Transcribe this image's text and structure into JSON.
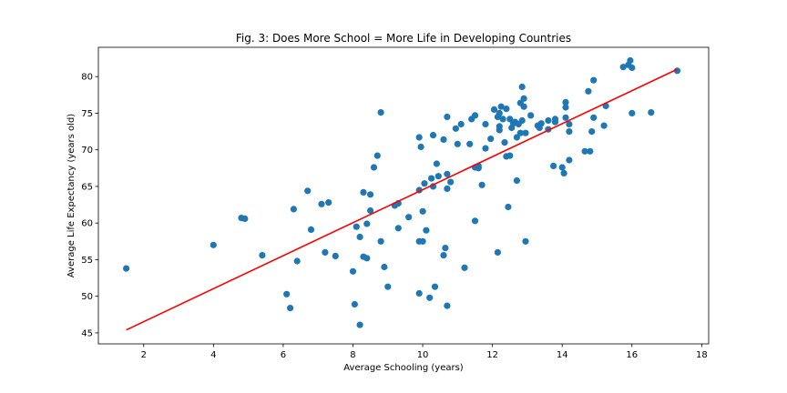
{
  "chart_data": {
    "type": "scatter",
    "title": "Fig. 3: Does More School = More Life in Developing Countries",
    "xlabel": "Average Schooling (years)",
    "ylabel": "Average Life Expectancy (years old)",
    "xlim": [
      0.7,
      18.2
    ],
    "ylim": [
      43.5,
      84.0
    ],
    "xticks": [
      2,
      4,
      6,
      8,
      10,
      12,
      14,
      16,
      18
    ],
    "yticks": [
      45,
      50,
      55,
      60,
      65,
      70,
      75,
      80
    ],
    "grid": false,
    "colors": {
      "points": "#1f77b4",
      "fit": "#ff0000"
    },
    "fit_line": {
      "x": [
        1.5,
        17.3
      ],
      "y": [
        45.4,
        81.0
      ]
    },
    "points": [
      [
        1.5,
        53.8
      ],
      [
        4.0,
        57.0
      ],
      [
        4.8,
        60.7
      ],
      [
        4.9,
        60.6
      ],
      [
        5.4,
        55.6
      ],
      [
        6.1,
        50.3
      ],
      [
        6.2,
        48.4
      ],
      [
        6.3,
        61.9
      ],
      [
        6.4,
        54.8
      ],
      [
        6.7,
        64.4
      ],
      [
        6.8,
        59.1
      ],
      [
        7.1,
        62.6
      ],
      [
        7.2,
        56.0
      ],
      [
        7.3,
        62.8
      ],
      [
        7.5,
        55.5
      ],
      [
        8.0,
        53.4
      ],
      [
        8.05,
        48.9
      ],
      [
        8.1,
        59.5
      ],
      [
        8.2,
        58.1
      ],
      [
        8.2,
        46.1
      ],
      [
        8.3,
        64.2
      ],
      [
        8.3,
        55.4
      ],
      [
        8.4,
        55.2
      ],
      [
        8.4,
        59.9
      ],
      [
        8.5,
        63.9
      ],
      [
        8.5,
        61.7
      ],
      [
        8.6,
        67.6
      ],
      [
        8.7,
        69.2
      ],
      [
        8.8,
        57.5
      ],
      [
        8.8,
        75.1
      ],
      [
        8.9,
        54.0
      ],
      [
        9.0,
        51.3
      ],
      [
        9.2,
        62.4
      ],
      [
        9.3,
        62.7
      ],
      [
        9.3,
        59.3
      ],
      [
        9.6,
        60.8
      ],
      [
        9.9,
        64.5
      ],
      [
        9.9,
        57.5
      ],
      [
        9.9,
        50.4
      ],
      [
        9.9,
        71.7
      ],
      [
        9.95,
        70.4
      ],
      [
        10.0,
        61.6
      ],
      [
        10.0,
        57.5
      ],
      [
        10.05,
        65.4
      ],
      [
        10.1,
        59.0
      ],
      [
        10.2,
        49.8
      ],
      [
        10.25,
        66.1
      ],
      [
        10.3,
        72.0
      ],
      [
        10.3,
        65.0
      ],
      [
        10.35,
        51.3
      ],
      [
        10.4,
        68.1
      ],
      [
        10.45,
        66.4
      ],
      [
        10.6,
        55.6
      ],
      [
        10.6,
        71.4
      ],
      [
        10.65,
        56.6
      ],
      [
        10.7,
        48.7
      ],
      [
        10.7,
        74.5
      ],
      [
        10.7,
        66.7
      ],
      [
        10.7,
        64.7
      ],
      [
        10.8,
        65.6
      ],
      [
        10.95,
        72.9
      ],
      [
        11.0,
        70.8
      ],
      [
        11.1,
        73.5
      ],
      [
        11.2,
        53.9
      ],
      [
        11.35,
        70.8
      ],
      [
        11.4,
        74.2
      ],
      [
        11.5,
        74.7
      ],
      [
        11.5,
        67.6
      ],
      [
        11.5,
        60.3
      ],
      [
        11.6,
        67.5
      ],
      [
        11.6,
        67.8
      ],
      [
        11.7,
        65.2
      ],
      [
        11.8,
        73.5
      ],
      [
        11.8,
        70.2
      ],
      [
        11.95,
        71.5
      ],
      [
        12.05,
        75.5
      ],
      [
        12.15,
        74.5
      ],
      [
        12.15,
        56.0
      ],
      [
        12.2,
        72.7
      ],
      [
        12.2,
        75.0
      ],
      [
        12.2,
        73.2
      ],
      [
        12.25,
        75.9
      ],
      [
        12.3,
        74.2
      ],
      [
        12.35,
        71.0
      ],
      [
        12.4,
        75.6
      ],
      [
        12.4,
        69.1
      ],
      [
        12.45,
        62.2
      ],
      [
        12.5,
        74.2
      ],
      [
        12.5,
        69.2
      ],
      [
        12.55,
        73.0
      ],
      [
        12.6,
        73.6
      ],
      [
        12.65,
        73.8
      ],
      [
        12.7,
        71.7
      ],
      [
        12.7,
        65.8
      ],
      [
        12.75,
        73.5
      ],
      [
        12.8,
        72.3
      ],
      [
        12.8,
        76.4
      ],
      [
        12.85,
        74.0
      ],
      [
        12.85,
        78.6
      ],
      [
        12.9,
        77.0
      ],
      [
        12.9,
        75.9
      ],
      [
        12.95,
        57.5
      ],
      [
        12.95,
        72.3
      ],
      [
        13.1,
        74.7
      ],
      [
        13.3,
        73.3
      ],
      [
        13.35,
        73.0
      ],
      [
        13.4,
        73.6
      ],
      [
        13.6,
        74.0
      ],
      [
        13.6,
        72.8
      ],
      [
        13.75,
        67.8
      ],
      [
        13.8,
        73.8
      ],
      [
        13.8,
        74.2
      ],
      [
        14.0,
        67.6
      ],
      [
        14.05,
        66.8
      ],
      [
        14.1,
        76.5
      ],
      [
        14.1,
        75.8
      ],
      [
        14.1,
        74.4
      ],
      [
        14.2,
        73.5
      ],
      [
        14.2,
        72.5
      ],
      [
        14.2,
        68.6
      ],
      [
        14.65,
        69.8
      ],
      [
        14.75,
        78.0
      ],
      [
        14.8,
        69.8
      ],
      [
        14.85,
        72.5
      ],
      [
        14.9,
        74.4
      ],
      [
        14.9,
        79.5
      ],
      [
        15.2,
        73.3
      ],
      [
        15.25,
        76.0
      ],
      [
        15.75,
        81.3
      ],
      [
        15.9,
        81.6
      ],
      [
        15.95,
        82.2
      ],
      [
        16.0,
        81.2
      ],
      [
        16.0,
        75.0
      ],
      [
        16.55,
        75.1
      ],
      [
        17.3,
        80.8
      ]
    ]
  }
}
